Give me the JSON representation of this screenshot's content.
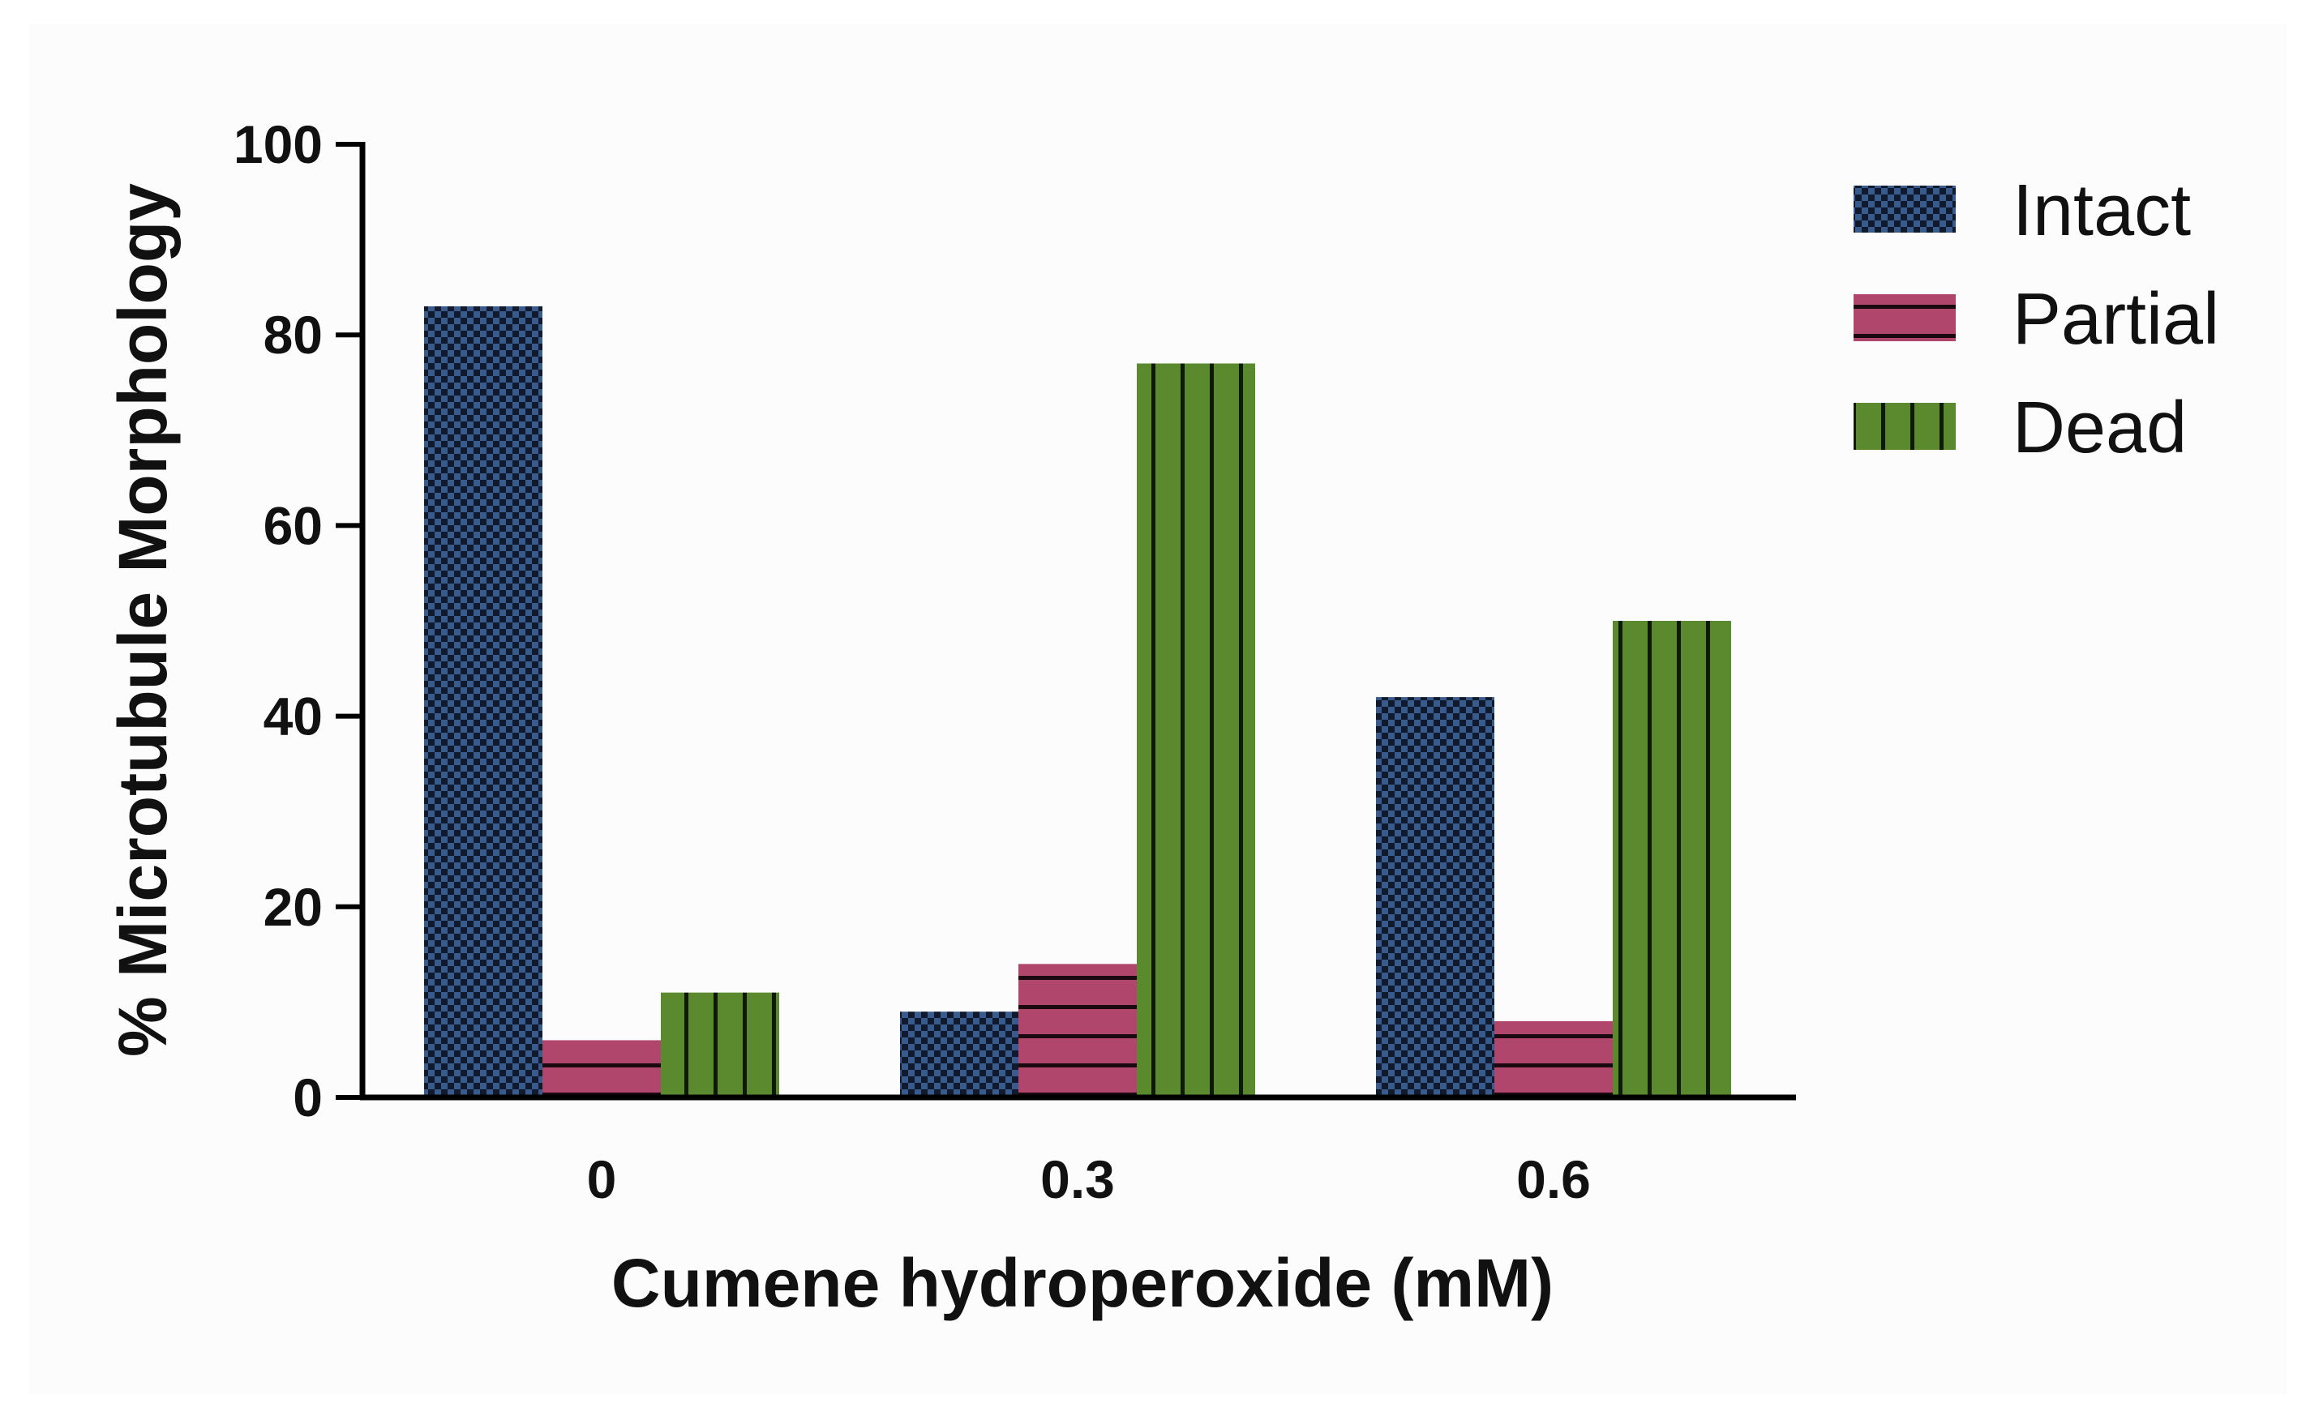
{
  "chart_data": {
    "type": "bar",
    "title": "",
    "xlabel": "Cumene hydroperoxide (mM)",
    "ylabel": "% Microtubule Morphology",
    "categories": [
      "0",
      "0.3",
      "0.6"
    ],
    "ylim": [
      0,
      100
    ],
    "yticks": [
      "0",
      "20",
      "40",
      "60",
      "80",
      "100"
    ],
    "grid": false,
    "legend_position": "top-right",
    "series": [
      {
        "name": "Intact",
        "color": "#3b5a8c",
        "pattern": "checkerboard",
        "values": [
          83,
          9,
          42
        ]
      },
      {
        "name": "Partial",
        "color": "#b0466c",
        "pattern": "horizontal-lines",
        "values": [
          6,
          14,
          8
        ]
      },
      {
        "name": "Dead",
        "color": "#5b8a2e",
        "pattern": "vertical-lines",
        "values": [
          11,
          77,
          50
        ]
      }
    ]
  }
}
